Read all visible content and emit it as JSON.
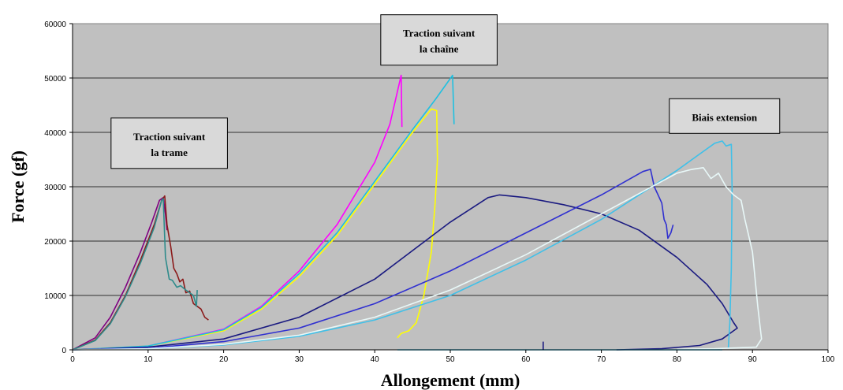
{
  "chart_data": {
    "type": "line",
    "xlabel": "Allongement (mm)",
    "ylabel": "Force (gf)",
    "xlim": [
      0,
      100
    ],
    "ylim": [
      0,
      60000
    ],
    "xticks": [
      0,
      10,
      20,
      30,
      40,
      50,
      60,
      70,
      80,
      90,
      100
    ],
    "yticks": [
      0,
      10000,
      20000,
      30000,
      40000,
      50000,
      60000
    ],
    "grid": "horizontal",
    "plot_background": "#c0c0c0",
    "annotations": [
      {
        "lines": [
          "Traction suivant",
          "la trame"
        ],
        "x": 12.8,
        "y": 38000
      },
      {
        "lines": [
          "Traction suivant",
          "la chaîne"
        ],
        "x": 48.5,
        "y": 57000
      },
      {
        "lines": [
          "Biais extension"
        ],
        "x": 86.3,
        "y": 43000
      }
    ],
    "series": [
      {
        "color": "#800080",
        "values": [
          [
            0,
            0
          ],
          [
            3,
            2200
          ],
          [
            5,
            6000
          ],
          [
            7,
            11500
          ],
          [
            9,
            18000
          ],
          [
            10.5,
            23500
          ],
          [
            11.5,
            27500
          ],
          [
            12,
            28000
          ],
          [
            12.3,
            25000
          ],
          [
            12.5,
            22000
          ]
        ]
      },
      {
        "color": "#8b1a1a",
        "values": [
          [
            0,
            0
          ],
          [
            3,
            1800
          ],
          [
            5,
            5000
          ],
          [
            7,
            10000
          ],
          [
            9,
            16500
          ],
          [
            10.8,
            23000
          ],
          [
            11.8,
            27500
          ],
          [
            12.2,
            28300
          ],
          [
            12.5,
            23000
          ],
          [
            13,
            19000
          ],
          [
            13.4,
            15000
          ],
          [
            13.8,
            14000
          ],
          [
            14.2,
            12500
          ],
          [
            14.6,
            13000
          ],
          [
            15,
            10500
          ],
          [
            15.5,
            10800
          ],
          [
            16,
            8500
          ],
          [
            16.5,
            8000
          ],
          [
            17,
            7500
          ],
          [
            17.5,
            6000
          ],
          [
            18,
            5500
          ]
        ]
      },
      {
        "color": "#2e8b8b",
        "values": [
          [
            0,
            0
          ],
          [
            3,
            1700
          ],
          [
            5,
            4800
          ],
          [
            7,
            9800
          ],
          [
            9,
            16000
          ],
          [
            10.8,
            22500
          ],
          [
            11.8,
            27500
          ],
          [
            12,
            27800
          ],
          [
            12.3,
            17000
          ],
          [
            12.8,
            13000
          ],
          [
            13.2,
            12800
          ],
          [
            13.8,
            11500
          ],
          [
            14.3,
            11800
          ],
          [
            15,
            11000
          ],
          [
            15.5,
            10500
          ],
          [
            16,
            10000
          ],
          [
            16.2,
            9000
          ],
          [
            16.4,
            8000
          ],
          [
            16.5,
            11000
          ]
        ]
      },
      {
        "color": "#ff00ff",
        "values": [
          [
            0,
            0
          ],
          [
            10,
            700
          ],
          [
            20,
            3800
          ],
          [
            25,
            8000
          ],
          [
            30,
            14500
          ],
          [
            35,
            23000
          ],
          [
            40,
            34500
          ],
          [
            42,
            41500
          ],
          [
            43.5,
            50500
          ],
          [
            43.6,
            41000
          ]
        ]
      },
      {
        "color": "#ffff00",
        "values": [
          [
            0,
            0
          ],
          [
            10,
            700
          ],
          [
            20,
            3500
          ],
          [
            25,
            7500
          ],
          [
            30,
            13500
          ],
          [
            35,
            21000
          ],
          [
            40,
            30500
          ],
          [
            45,
            40000
          ],
          [
            47.5,
            44300
          ],
          [
            48.2,
            44000
          ],
          [
            48.3,
            35000
          ],
          [
            48,
            27000
          ],
          [
            47.5,
            18000
          ],
          [
            46.5,
            10000
          ],
          [
            45.5,
            5000
          ],
          [
            44.5,
            3500
          ],
          [
            43.5,
            3000
          ],
          [
            43,
            2200
          ]
        ]
      },
      {
        "color": "#20c0e0",
        "values": [
          [
            0,
            0
          ],
          [
            10,
            700
          ],
          [
            20,
            3700
          ],
          [
            25,
            7800
          ],
          [
            30,
            14000
          ],
          [
            35,
            21500
          ],
          [
            40,
            31000
          ],
          [
            45,
            40500
          ],
          [
            48,
            46000
          ],
          [
            50.3,
            50500
          ],
          [
            50.5,
            41500
          ]
        ]
      },
      {
        "color": "#1a1a80",
        "values": [
          [
            0,
            0
          ],
          [
            10,
            500
          ],
          [
            20,
            2000
          ],
          [
            30,
            6000
          ],
          [
            40,
            13000
          ],
          [
            50,
            23500
          ],
          [
            55,
            28000
          ],
          [
            56.5,
            28500
          ],
          [
            60,
            28000
          ],
          [
            65,
            26700
          ],
          [
            70,
            25000
          ],
          [
            75,
            22000
          ],
          [
            80,
            17000
          ],
          [
            84,
            12000
          ],
          [
            86,
            8500
          ],
          [
            87.5,
            5000
          ],
          [
            88,
            4000
          ],
          [
            86,
            2000
          ],
          [
            83,
            800
          ],
          [
            78,
            200
          ],
          [
            72,
            0
          ]
        ]
      },
      {
        "color": "#3030d0",
        "values": [
          [
            0,
            0
          ],
          [
            10,
            300
          ],
          [
            20,
            1500
          ],
          [
            30,
            4000
          ],
          [
            40,
            8500
          ],
          [
            50,
            14500
          ],
          [
            60,
            21500
          ],
          [
            70,
            28500
          ],
          [
            75.5,
            32800
          ],
          [
            76.5,
            33200
          ],
          [
            77,
            30000
          ],
          [
            77.5,
            28500
          ],
          [
            78,
            27000
          ],
          [
            78.3,
            24000
          ],
          [
            78.6,
            23000
          ],
          [
            78.8,
            20500
          ],
          [
            79.2,
            21500
          ],
          [
            79.5,
            23000
          ]
        ]
      },
      {
        "color": "#40c0e8",
        "values": [
          [
            0,
            0
          ],
          [
            10,
            200
          ],
          [
            20,
            900
          ],
          [
            30,
            2500
          ],
          [
            40,
            5500
          ],
          [
            50,
            10000
          ],
          [
            60,
            16500
          ],
          [
            70,
            24000
          ],
          [
            80,
            33000
          ],
          [
            85,
            38000
          ],
          [
            86,
            38400
          ],
          [
            86.5,
            37500
          ],
          [
            87.2,
            37800
          ],
          [
            87.3,
            30000
          ],
          [
            87.2,
            15000
          ],
          [
            87,
            5000
          ],
          [
            86.8,
            200
          ]
        ]
      },
      {
        "color": "#e8f8f8",
        "values": [
          [
            0,
            0
          ],
          [
            10,
            200
          ],
          [
            20,
            1000
          ],
          [
            30,
            2700
          ],
          [
            40,
            6000
          ],
          [
            50,
            11000
          ],
          [
            60,
            17500
          ],
          [
            70,
            25000
          ],
          [
            80,
            32500
          ],
          [
            82,
            33200
          ],
          [
            83.5,
            33500
          ],
          [
            84.5,
            31500
          ],
          [
            85.5,
            32500
          ],
          [
            86.5,
            30000
          ],
          [
            87.5,
            28500
          ],
          [
            88.5,
            27500
          ],
          [
            89,
            24000
          ],
          [
            90,
            18000
          ],
          [
            90.7,
            8000
          ],
          [
            91.2,
            2000
          ],
          [
            90.5,
            500
          ],
          [
            85,
            200
          ],
          [
            80,
            100
          ]
        ]
      },
      {
        "color": "#40c8f0",
        "values": [
          [
            43,
            0
          ],
          [
            60,
            0
          ],
          [
            80,
            0
          ],
          [
            86,
            0
          ]
        ]
      },
      {
        "color": "#1a1a80",
        "values": [
          [
            62.3,
            0
          ],
          [
            62.3,
            1500
          ]
        ]
      }
    ]
  }
}
